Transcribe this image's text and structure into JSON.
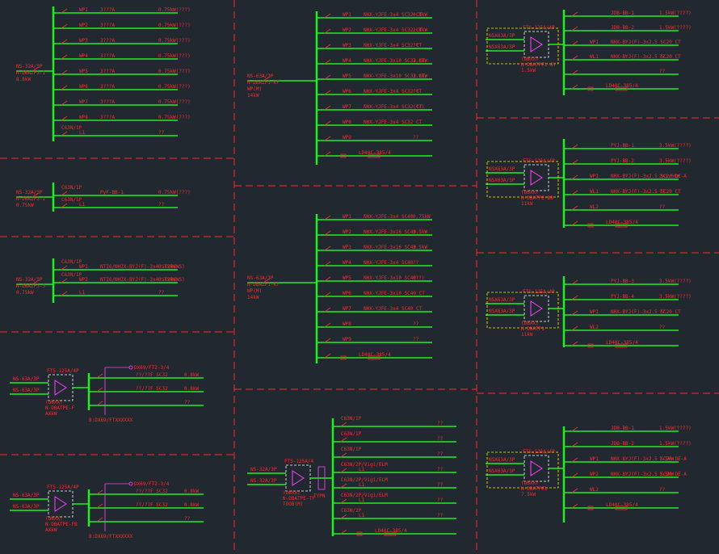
{
  "colors": {
    "background": "#212830",
    "bus": "#22ee22",
    "text": "#ff2a2a",
    "divider": "#ff2a2a",
    "spd": "#ff40ff",
    "box": "#ffffff",
    "meterbox": "#ffee00"
  },
  "panels": [
    {
      "id": "p1",
      "incoming": [
        "NS-32A/3P",
        "N-DBAZP3-1",
        "8.8kW"
      ],
      "rows": [
        {
          "code": "WP1",
          "right": "3???A",
          "load": "0.75kW(???)"
        },
        {
          "code": "WP2",
          "right": "3???A",
          "load": "0.75kW(???)"
        },
        {
          "code": "WP3",
          "right": "3???A",
          "load": "0.75kW(???)"
        },
        {
          "code": "WP4",
          "right": "3???A",
          "load": "0.75kW(???)"
        },
        {
          "code": "WP5",
          "right": "3???A",
          "load": "0.75kW(???)"
        },
        {
          "code": "WP6",
          "right": "3???A",
          "load": "0.75kW(???)"
        },
        {
          "code": "WP7",
          "right": "3???A",
          "load": "0.75kW(???)"
        },
        {
          "code": "WP8",
          "right": "3???A",
          "load": "0.75kW(???)"
        },
        {
          "code": "L1",
          "right": "",
          "load": "??",
          "breaker": "C63N/1P"
        }
      ]
    },
    {
      "id": "p2",
      "incoming": [
        "NS-32A/3P",
        "N-DBAZP3-2",
        "0.75kW"
      ],
      "rows": [
        {
          "code": "",
          "right": "PyF-BB-1",
          "load": "0.75kW(???)",
          "breaker": "C63N/1P"
        },
        {
          "code": "L1",
          "right": "",
          "load": "??",
          "breaker": "C63N/1P"
        }
      ]
    },
    {
      "id": "p3",
      "incoming": [
        "NS-32A/3P",
        "N-DBAZP3-3",
        "0.75kW"
      ],
      "rows": [
        {
          "code": "WP1",
          "right": "NTI6/NH2X-BYJ(F)-3x4 SC20(WS)",
          "load": "0.75kW",
          "breaker": "C63N/1P"
        },
        {
          "code": "WP2",
          "right": "NTI6/NH2X-BYJ(F)-3x4 SC20(WS)",
          "load": "0.75kW",
          "breaker": "C63N/1P"
        },
        {
          "code": "L1",
          "right": "",
          "load": "??"
        }
      ]
    },
    {
      "id": "p4",
      "incoming": [
        "NS-63A/3P",
        "NS-63A/3P",
        "(DBXX)",
        "N-DBATPE-F",
        "AXkW"
      ],
      "spd": "FTS-125A/4P",
      "top": "DX69/FT2-3/4",
      "rows": [
        {
          "code": "",
          "right": "??/??F SC32",
          "load": "0.8kW"
        },
        {
          "code": "",
          "right": "??/??F SC32",
          "load": "0.8kW"
        },
        {
          "code": "",
          "right": "",
          "load": "??"
        }
      ],
      "bottom": "B:DX69/FTXXXXXX"
    },
    {
      "id": "p5",
      "incoming": [
        "NS-63A/3P",
        "NS-63A/3P",
        "(DBXX)",
        "N-DBATPE-FB",
        "AXkW"
      ],
      "spd": "FTS-125A/4P",
      "top": "DX69/FT2-3/4",
      "rows": [
        {
          "code": "",
          "right": "??/??F SC32",
          "load": "0.8kW"
        },
        {
          "code": "",
          "right": "??/??F SC32",
          "load": "0.8kW"
        },
        {
          "code": "",
          "right": "",
          "load": "??"
        }
      ],
      "bottom": "B:DX69/FTXXXXXX"
    },
    {
      "id": "p6",
      "incoming": [
        "NS-63A/3P",
        "N-DBAZP1-KF",
        "WP(M)",
        "14kW"
      ],
      "rows": [
        {
          "code": "WP1",
          "right": "NHX-YJFE-3x4 SC32 CT",
          "load": "0.8kW"
        },
        {
          "code": "WP2",
          "right": "NHX-YJFE-3x4 SC32 CT",
          "load": "2.8kW"
        },
        {
          "code": "WP3",
          "right": "NHX-YJFE-3x4 SC32 CT",
          "load": "??"
        },
        {
          "code": "WP4",
          "right": "NHX-YJFE-3x10 SC32 CT",
          "load": "3.8kW"
        },
        {
          "code": "WP5",
          "right": "NHX-YJFE-3x10 SC32 CT",
          "load": "3.8kW"
        },
        {
          "code": "WP6",
          "right": "NHX-YJFE-3x4 SC32 CT",
          "load": "??"
        },
        {
          "code": "WP7",
          "right": "NHX-YJFE-3x4 SC32 CT",
          "load": "(??)"
        },
        {
          "code": "WP8",
          "right": "NHX-YJFE-3x4 SC32 CT",
          "load": ""
        },
        {
          "code": "WP9",
          "right": "",
          "load": "??"
        },
        {
          "code": "",
          "right": "LD40C-385/4",
          "load": ""
        }
      ]
    },
    {
      "id": "p7",
      "incoming": [
        "NS-63A/3P",
        "N-DBAZP1-KF",
        "WP(M)",
        "14kW"
      ],
      "rows": [
        {
          "code": "WP1",
          "right": "NHX-YJFE-3x4 SC40",
          "load": "0.75kW"
        },
        {
          "code": "WP2",
          "right": "NHX-YJFE-3x16 SC40",
          "load": "3.5kW"
        },
        {
          "code": "WP3",
          "right": "NHX-YJFE-3x16 SC40",
          "load": "3.5kW"
        },
        {
          "code": "WP4",
          "right": "NHX-YJFE-3x4 SC40",
          "load": "??"
        },
        {
          "code": "WP5",
          "right": "NHX-YJFE-3x10 SC40",
          "load": "(??)"
        },
        {
          "code": "WP6",
          "right": "NHX-YJFE-3x10 SC40 CT",
          "load": ""
        },
        {
          "code": "WP7",
          "right": "NHX-YJFE-3x4 SC40 CT",
          "load": ""
        },
        {
          "code": "WP8",
          "right": "",
          "load": "??"
        },
        {
          "code": "WP9",
          "right": "",
          "load": "??"
        },
        {
          "code": "",
          "right": "LD40C-385/4",
          "load": ""
        }
      ]
    },
    {
      "id": "p8",
      "incoming": [
        "NS-32A/3P",
        "NS-32A/3P",
        "(DBXX)",
        "N-DBATPE-TF",
        "TOOB(M)"
      ],
      "spd": "FTS-125A/4",
      "meter": "TYPN",
      "rows": [
        {
          "code": "",
          "right": "",
          "load": "??",
          "breaker": "C63N/1P"
        },
        {
          "code": "",
          "right": "",
          "load": "??",
          "breaker": "C63N/1P"
        },
        {
          "code": "",
          "right": "",
          "load": "??",
          "breaker": "C63N/1P"
        },
        {
          "code": "L1",
          "right": "",
          "load": "??",
          "breaker": "C63N/2P/Vigi/ELM"
        },
        {
          "code": "L1",
          "right": "",
          "load": "??",
          "breaker": "C63N/2P/Vigi/ELM"
        },
        {
          "code": "L1",
          "right": "",
          "load": "??",
          "breaker": "C63N/2P/Vigi/ELM"
        },
        {
          "code": "L1",
          "right": "",
          "load": "??",
          "breaker": "C63N/2P"
        },
        {
          "code": "",
          "right": "LD40C-385/4",
          "load": ""
        }
      ]
    },
    {
      "id": "p9",
      "incoming": [
        "NSX63A/3P",
        "NSX63A/3P",
        "(DBXX)",
        "N-DBATPE1-BY",
        "1.5kW"
      ],
      "spd": "FTS-125A/4P",
      "rows": [
        {
          "code": "",
          "right": "JDB-BB-1",
          "load": "1.5kW(????)"
        },
        {
          "code": "",
          "right": "JDB-BB-2",
          "load": "1.5kW(????)"
        },
        {
          "code": "WP1",
          "right": "NHX-BYJ(F)-3x2.5 SC20 CT",
          "load": ""
        },
        {
          "code": "WL1",
          "right": "NHX-BYJ(F)-3x2.5 SC20 CT",
          "load": "??"
        },
        {
          "code": "",
          "right": "",
          "load": "??"
        },
        {
          "code": "",
          "right": "LD40C-385/4",
          "load": ""
        }
      ]
    },
    {
      "id": "p10",
      "incoming": [
        "NSX63A/3P",
        "NSX63A/3P",
        "(DBXX)",
        "N-DBATPE-BB",
        "11kW"
      ],
      "spd": "FTS-125A/4P",
      "rows": [
        {
          "code": "",
          "right": "PYJ-BB-1",
          "load": "3.5kW(????)"
        },
        {
          "code": "",
          "right": "PYJ-BB-2",
          "load": "3.5kW(????)"
        },
        {
          "code": "WP1",
          "right": "NHX-BYJ(F)-3x2.5 SC20 DE-A",
          "load": "2X1.5kW"
        },
        {
          "code": "WL1",
          "right": "NHX-BYJ(F)-3x2.5 SC20 CT",
          "load": "??"
        },
        {
          "code": "WL2",
          "right": "",
          "load": "??"
        },
        {
          "code": "",
          "right": "LD40C-385/4",
          "load": ""
        }
      ]
    },
    {
      "id": "p11",
      "incoming": [
        "NSX63A/3P",
        "NSX63A/3P",
        "(DBXX)",
        "N-DBATP1",
        "11kW"
      ],
      "spd": "FTS-125A/4P",
      "rows": [
        {
          "code": "",
          "right": "PYJ-BB-3",
          "load": "3.5kW(????)"
        },
        {
          "code": "",
          "right": "PYJ-BB-4",
          "load": "3.5kW(????)"
        },
        {
          "code": "WP1",
          "right": "NHX-BYJ(F)-3x2.5 SC20 CT",
          "load": "??"
        },
        {
          "code": "WL2",
          "right": "",
          "load": "??"
        },
        {
          "code": "",
          "right": "LD40C-385/4",
          "load": ""
        }
      ]
    },
    {
      "id": "p12",
      "incoming": [
        "NSX63A/3P",
        "NSX63A/3P",
        "(DBXX)",
        "N-DBATPE1",
        "7.5kW"
      ],
      "spd": "FTS-125A/4P",
      "rows": [
        {
          "code": "",
          "right": "JDB-BB-1",
          "load": "1.5kW(????)"
        },
        {
          "code": "",
          "right": "JDB-BB-2",
          "load": "1.5kW(????)"
        },
        {
          "code": "WP1",
          "right": "NHX-BYJ(F)-3x2.5 SC20 DE-A",
          "load": "1.5kW"
        },
        {
          "code": "WP2",
          "right": "NHX-BYJ(F)-3x2.5 SC20 DE-A",
          "load": "1.5kW"
        },
        {
          "code": "WL2",
          "right": "",
          "load": "??"
        },
        {
          "code": "",
          "right": "LD40C-385/4",
          "load": ""
        }
      ]
    }
  ]
}
